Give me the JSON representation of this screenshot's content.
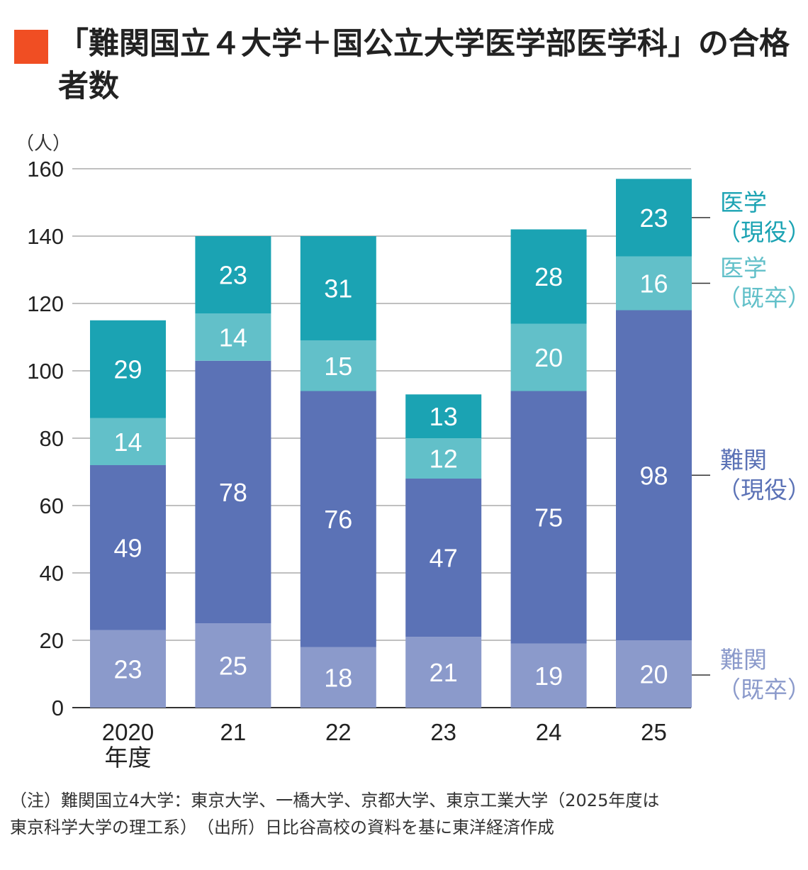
{
  "title": "「難関国立４大学＋国公立大学医学部医学科」の合格者数",
  "unit_label": "（人）",
  "x_axis_suffix": "年度",
  "note_line1": "（注）難関国立4大学：東京大学、一橋大学、京都大学、東京工業大学（2025年度は",
  "note_line2": "東京科学大学の理工系）　（出所）日比谷高校の資料を基に東洋経済作成",
  "chart_data": {
    "type": "bar",
    "stacked": true,
    "title": "「難関国立４大学＋国公立大学医学部医学科」の合格者数",
    "ylabel": "（人）",
    "ylim": [
      0,
      160
    ],
    "yticks": [
      0,
      20,
      40,
      60,
      80,
      100,
      120,
      140,
      160
    ],
    "grid": true,
    "legend_position": "right",
    "categories": [
      "2020",
      "21",
      "22",
      "23",
      "24",
      "25"
    ],
    "series": [
      {
        "name": "難関（既卒）",
        "name_lines": [
          "難関",
          "（既卒）"
        ],
        "color": "#8b9acb",
        "values": [
          23,
          25,
          18,
          21,
          19,
          20
        ]
      },
      {
        "name": "難関（現役）",
        "name_lines": [
          "難関",
          "（現役）"
        ],
        "color": "#5b72b6",
        "values": [
          49,
          78,
          76,
          47,
          75,
          98
        ]
      },
      {
        "name": "医学（既卒）",
        "name_lines": [
          "医学",
          "（既卒）"
        ],
        "color": "#62c0c9",
        "values": [
          14,
          14,
          15,
          12,
          20,
          16
        ]
      },
      {
        "name": "医学（現役）",
        "name_lines": [
          "医学",
          "（現役）"
        ],
        "color": "#1ba3b3",
        "values": [
          29,
          23,
          31,
          13,
          28,
          23
        ]
      }
    ]
  }
}
